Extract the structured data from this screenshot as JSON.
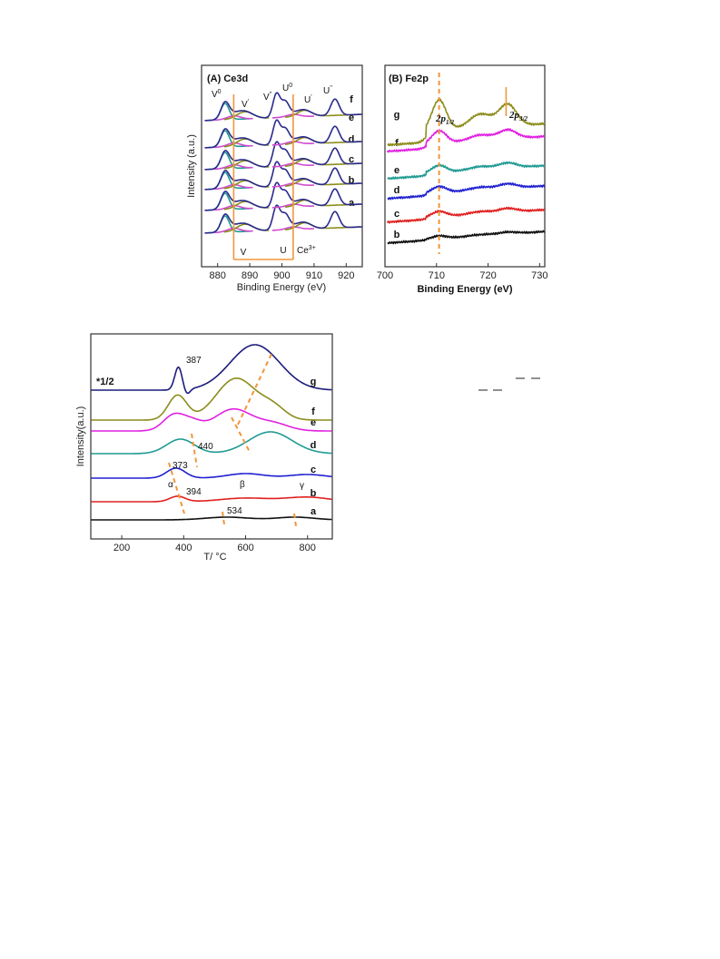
{
  "chart_data": [
    {
      "type": "line",
      "panel_label": "(A) Ce3d",
      "xlabel": "Binding Energy (eV)",
      "ylabel": "Intensity (a.u.)",
      "xlim": [
        875,
        925
      ],
      "xticks": [
        880,
        890,
        900,
        910,
        920
      ],
      "series": [
        {
          "name": "a",
          "color": "#2a2a8c",
          "peaks": [
            882.5,
            889,
            898.5,
            901,
            907,
            916.5
          ]
        },
        {
          "name": "b",
          "color": "#2a2a8c",
          "peaks": [
            882.5,
            889,
            898.5,
            901,
            907,
            916.5
          ]
        },
        {
          "name": "c",
          "color": "#2a2a8c",
          "peaks": [
            882.5,
            889,
            898.5,
            901,
            907,
            916.5
          ]
        },
        {
          "name": "d",
          "color": "#2a2a8c",
          "peaks": [
            882.5,
            889,
            898.5,
            901,
            907,
            916.5
          ]
        },
        {
          "name": "e",
          "color": "#2a2a8c",
          "peaks": [
            882.5,
            889,
            898.5,
            901,
            907,
            916.5
          ]
        },
        {
          "name": "f",
          "color": "#2a2a8c",
          "peaks": [
            882.5,
            889,
            898.5,
            901,
            907,
            916.5
          ]
        }
      ],
      "annotations": {
        "v0": "V",
        "v0_sup": "0",
        "v1": "V",
        "v1_sup": "'",
        "v2": "V",
        "v2_sup": "''",
        "u0": "U",
        "u0_sup": "0",
        "u1": "U",
        "u1_sup": "'",
        "u2": "U",
        "u2_sup": "''",
        "v_bottom": "V",
        "u_bottom": "U",
        "ce3": "Ce",
        "ce3_sup": "3+"
      },
      "guide_lines_x": [
        885,
        903.5
      ]
    },
    {
      "type": "line",
      "panel_label": "(B) Fe2p",
      "xlabel": "Binding Energy (eV)",
      "xlim": [
        700,
        731
      ],
      "xticks": [
        700,
        710,
        720,
        730
      ],
      "series": [
        {
          "name": "b",
          "color": "#111111"
        },
        {
          "name": "c",
          "color": "#e02020"
        },
        {
          "name": "d",
          "color": "#2020d0"
        },
        {
          "name": "e",
          "color": "#1f9a92"
        },
        {
          "name": "f",
          "color": "#e020e0"
        },
        {
          "name": "g",
          "color": "#8c8c1c"
        }
      ],
      "peak_labels": {
        "p12": "2p",
        "p12_sub": "1/2",
        "p32": "2p",
        "p32_sub": "3/2"
      },
      "guide_lines_x": [
        710.5,
        723.5
      ]
    },
    {
      "type": "line",
      "xlabel": "T/ °C",
      "ylabel": "Intensity(a.u.)",
      "xlim": [
        100,
        880
      ],
      "xticks": [
        200,
        400,
        600,
        800
      ],
      "scale_note": "*1/2",
      "series": [
        {
          "name": "a",
          "color": "#111111"
        },
        {
          "name": "b",
          "color": "#e02020"
        },
        {
          "name": "c",
          "color": "#2020d0"
        },
        {
          "name": "d",
          "color": "#1f9a92"
        },
        {
          "name": "e",
          "color": "#e020e0"
        },
        {
          "name": "f",
          "color": "#8c8c1c"
        },
        {
          "name": "g",
          "color": "#1c1c7c"
        }
      ],
      "annotations": [
        {
          "text": "387",
          "x": 387
        },
        {
          "text": "440",
          "x": 440
        },
        {
          "text": "373",
          "x": 373
        },
        {
          "text": "394",
          "x": 394
        },
        {
          "text": "534",
          "x": 534
        },
        {
          "text": "α",
          "x": 360
        },
        {
          "text": "β",
          "x": 570
        },
        {
          "text": "γ",
          "x": 770
        }
      ]
    }
  ]
}
